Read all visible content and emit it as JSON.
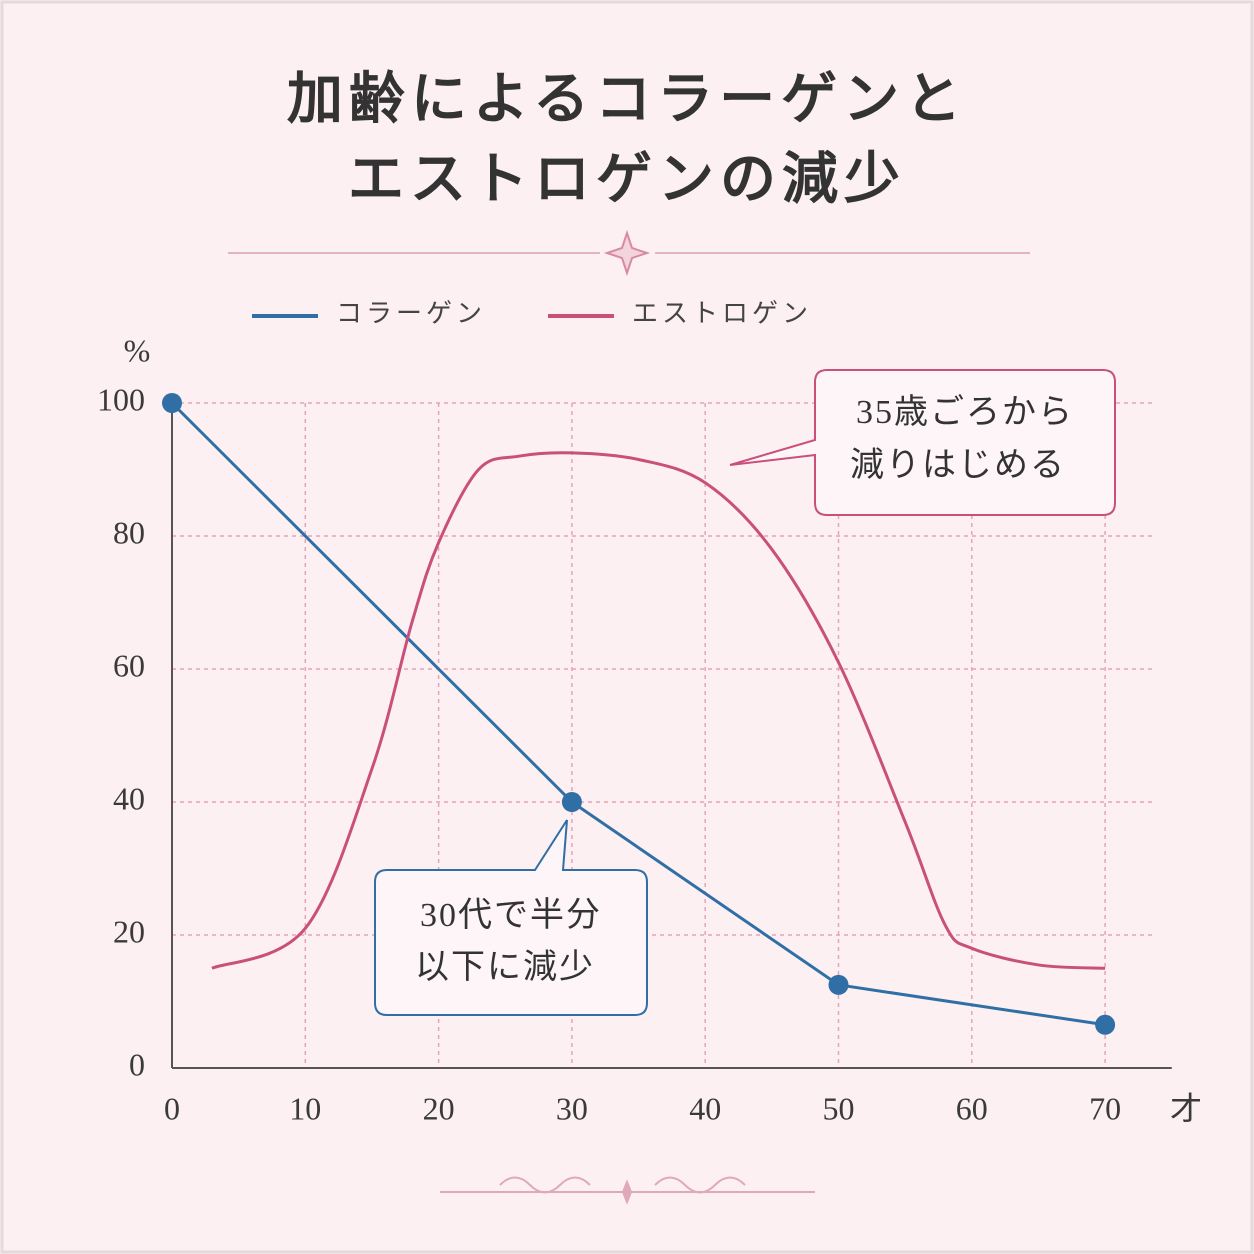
{
  "chart_data": {
    "type": "line",
    "title": [
      "加齢によるコラーゲンと",
      "エストロゲンの減少"
    ],
    "y_unit": "%",
    "x_unit": "才",
    "xlim": [
      0,
      75
    ],
    "ylim": [
      0,
      100
    ],
    "xticks": [
      0,
      10,
      20,
      30,
      40,
      50,
      60,
      70
    ],
    "yticks": [
      0,
      20,
      40,
      60,
      80,
      100
    ],
    "grid": true,
    "series": [
      {
        "name": "コラーゲン",
        "color": "#2f6fa6",
        "markers": true,
        "smooth": false,
        "x": [
          0,
          30,
          50,
          70
        ],
        "values": [
          100,
          40,
          12.5,
          6.5
        ]
      },
      {
        "name": "エストロゲン",
        "color": "#c9507a",
        "markers": false,
        "smooth": true,
        "x": [
          3,
          10,
          15,
          18,
          20,
          23,
          26,
          30,
          35,
          40,
          45,
          50,
          55,
          58,
          60,
          65,
          70
        ],
        "values": [
          15,
          21,
          45,
          67,
          79,
          90,
          92,
          92.5,
          91.5,
          88,
          78,
          61,
          37,
          21.5,
          18,
          15.5,
          15
        ]
      }
    ],
    "annotations": [
      {
        "lines": [
          "35歳ごろから",
          "減りはじめる"
        ],
        "color": "#c9507a"
      },
      {
        "lines": [
          "30代で半分",
          "以下に減少"
        ],
        "color": "#2f6fa6"
      }
    ]
  }
}
